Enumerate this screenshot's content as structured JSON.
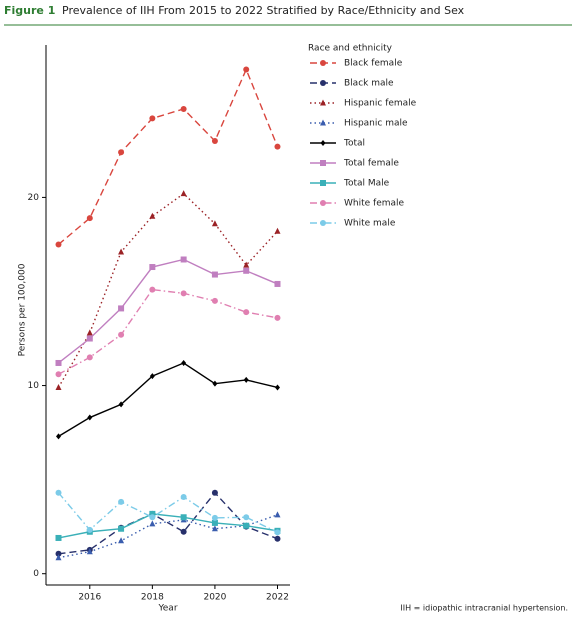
{
  "chart_data": {
    "type": "line",
    "figure_label": "Figure 1",
    "title": "Prevalence of IIH From 2015 to 2022 Stratified by Race/Ethnicity and Sex",
    "x_label": "Year",
    "y_label": "Persons per 100,000",
    "legend_title": "Race and ethnicity",
    "footnote": "IIH = idiopathic intracranial hypertension.",
    "x": [
      2015,
      2016,
      2017,
      2018,
      2019,
      2020,
      2021,
      2022
    ],
    "xlim": [
      2014.6,
      2022.4
    ],
    "xticks": [
      2016,
      2018,
      2020,
      2022
    ],
    "ylim": [
      -0.6,
      28.1
    ],
    "yticks": [
      0,
      10,
      20
    ],
    "series": [
      {
        "name": "Black female",
        "color": "#d9463e",
        "dash": "dashed",
        "marker": "circle",
        "values": [
          17.5,
          18.9,
          22.4,
          24.2,
          24.7,
          23.0,
          26.8,
          22.7
        ]
      },
      {
        "name": "Black male",
        "color": "#27306b",
        "dash": "dashed",
        "marker": "circle",
        "values": [
          1.06,
          1.27,
          2.44,
          3.18,
          2.23,
          4.3,
          2.5,
          1.86
        ]
      },
      {
        "name": "Hispanic female",
        "color": "#9b2226",
        "dash": "dotted",
        "marker": "triangle",
        "values": [
          9.9,
          12.8,
          17.1,
          19.0,
          20.2,
          18.6,
          16.4,
          18.2
        ]
      },
      {
        "name": "Hispanic male",
        "color": "#3a5dae",
        "dash": "dotted",
        "marker": "triangle",
        "values": [
          0.85,
          1.17,
          1.75,
          2.65,
          2.86,
          2.39,
          2.55,
          3.13
        ]
      },
      {
        "name": "Total",
        "color": "#000000",
        "dash": "solid",
        "marker": "diamond",
        "values": [
          7.3,
          8.3,
          9.0,
          10.5,
          11.2,
          10.1,
          10.3,
          9.9
        ]
      },
      {
        "name": "Total female",
        "color": "#c07fc0",
        "dash": "solid",
        "marker": "square",
        "values": [
          11.2,
          12.5,
          14.1,
          16.3,
          16.7,
          15.9,
          16.1,
          15.4
        ]
      },
      {
        "name": "Total Male",
        "color": "#3ab0b8",
        "dash": "solid",
        "marker": "square",
        "values": [
          1.9,
          2.23,
          2.39,
          3.18,
          3.0,
          2.7,
          2.55,
          2.28
        ]
      },
      {
        "name": "White female",
        "color": "#e07fb1",
        "dash": "dashdot",
        "marker": "circle",
        "values": [
          10.6,
          11.5,
          12.7,
          15.1,
          14.9,
          14.5,
          13.9,
          13.6
        ]
      },
      {
        "name": "White male",
        "color": "#7ccbe8",
        "dash": "dashdot",
        "marker": "circle",
        "values": [
          4.3,
          2.33,
          3.82,
          3.0,
          4.08,
          2.97,
          3.0,
          2.2
        ]
      }
    ]
  }
}
